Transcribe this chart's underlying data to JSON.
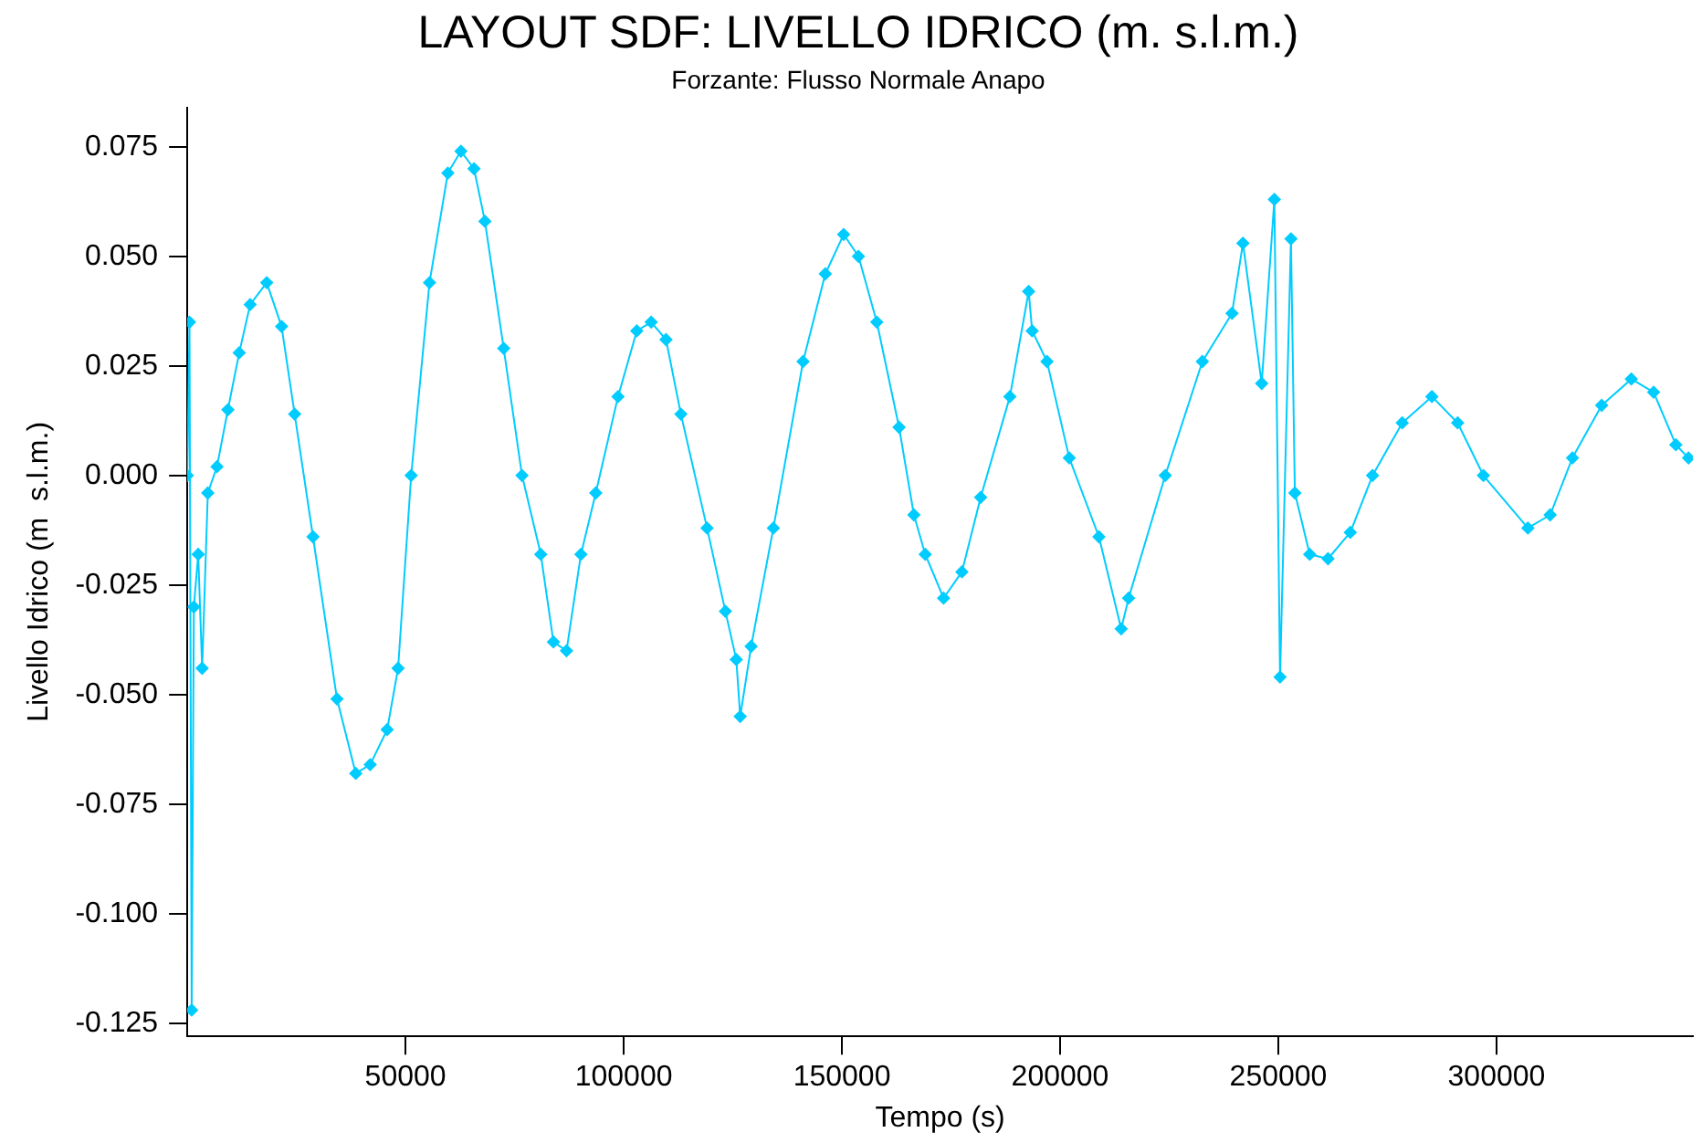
{
  "chart_data": {
    "type": "line",
    "title": "LAYOUT SDF: LIVELLO IDRICO (m. s.l.m.)",
    "subtitle": "Forzante: Flusso Normale Anapo",
    "xlabel": "Tempo (s)",
    "ylabel": "Livello Idrico (m  s.l.m.)",
    "series": [
      {
        "color": "#00ccff",
        "x": [
          0,
          500,
          1000,
          1500,
          2500,
          3400,
          4700,
          6800,
          9300,
          11900,
          14400,
          18200,
          21600,
          24600,
          28800,
          34300,
          38600,
          41900,
          45800,
          48300,
          51300,
          55500,
          59700,
          62700,
          65700,
          68200,
          72500,
          76700,
          81000,
          83900,
          86900,
          90200,
          93600,
          98700,
          103000,
          106300,
          109700,
          113100,
          119100,
          123300,
          125800,
          126700,
          129200,
          134300,
          141100,
          146200,
          150400,
          153800,
          158000,
          163100,
          166500,
          169100,
          173300,
          177500,
          181800,
          188500,
          192800,
          193600,
          197000,
          202100,
          208900,
          214000,
          215700,
          224100,
          232600,
          239400,
          241900,
          246200,
          249100,
          250400,
          252900,
          253800,
          257200,
          261400,
          266500,
          271600,
          278400,
          285200,
          291100,
          297000,
          307200,
          312300,
          317400,
          324100,
          330900,
          336000,
          341100,
          344000
        ],
        "values": [
          0,
          0.035,
          -0.122,
          -0.03,
          -0.018,
          -0.044,
          -0.004,
          0.002,
          0.015,
          0.028,
          0.039,
          0.044,
          0.034,
          0.014,
          -0.014,
          -0.051,
          -0.068,
          -0.066,
          -0.058,
          -0.044,
          0,
          0.044,
          0.069,
          0.074,
          0.07,
          0.058,
          0.029,
          0,
          -0.018,
          -0.038,
          -0.04,
          -0.018,
          -0.004,
          0.018,
          0.033,
          0.035,
          0.031,
          0.014,
          -0.012,
          -0.031,
          -0.042,
          -0.055,
          -0.039,
          -0.012,
          0.026,
          0.046,
          0.055,
          0.05,
          0.035,
          0.011,
          -0.009,
          -0.018,
          -0.028,
          -0.022,
          -0.005,
          0.018,
          0.042,
          0.033,
          0.026,
          0.004,
          -0.014,
          -0.035,
          -0.028,
          0,
          0.026,
          0.037,
          0.053,
          0.021,
          0.063,
          -0.046,
          0.054,
          -0.004,
          -0.018,
          -0.019,
          -0.013,
          0,
          0.012,
          0.018,
          0.012,
          0,
          -0.012,
          -0.009,
          0.004,
          0.016,
          0.022,
          0.019,
          0.007,
          0.004
        ]
      }
    ],
    "xlim": [
      0,
      345000
    ],
    "xticks": [
      50000,
      100000,
      150000,
      200000,
      250000,
      300000
    ],
    "ylim": [
      -0.128,
      0.084
    ],
    "yticks": [
      {
        "value": 0.075,
        "label": "0.075"
      },
      {
        "value": 0.05,
        "label": "0.050"
      },
      {
        "value": 0.025,
        "label": "0.025"
      },
      {
        "value": 0,
        "label": "0.000"
      },
      {
        "value": -0.025,
        "label": "-0.025"
      },
      {
        "value": -0.05,
        "label": "-0.050"
      },
      {
        "value": -0.075,
        "label": "-0.075"
      },
      {
        "value": -0.1,
        "label": "-0.100"
      },
      {
        "value": -0.125,
        "label": "-0.125"
      }
    ],
    "grid": false,
    "legend": false,
    "marker": "diamond",
    "line_style": "solid"
  }
}
